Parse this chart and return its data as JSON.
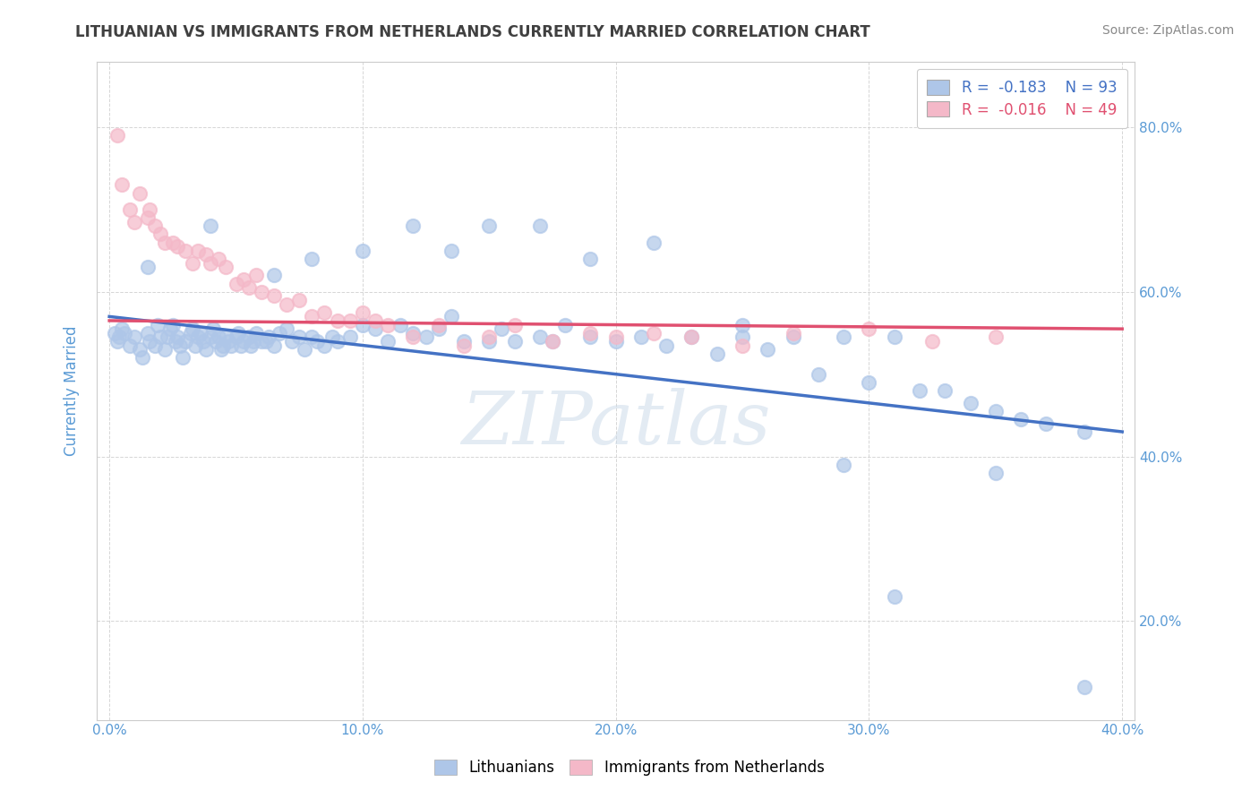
{
  "title": "LITHUANIAN VS IMMIGRANTS FROM NETHERLANDS CURRENTLY MARRIED CORRELATION CHART",
  "source": "Source: ZipAtlas.com",
  "ylabel_label": "Currently Married",
  "x_ticklabels": [
    "0.0%",
    "10.0%",
    "20.0%",
    "30.0%",
    "40.0%"
  ],
  "y_ticklabels": [
    "20.0%",
    "40.0%",
    "60.0%",
    "80.0%"
  ],
  "xlim": [
    -0.005,
    0.405
  ],
  "ylim": [
    0.08,
    0.88
  ],
  "legend_entries": [
    {
      "label": "R =  -0.183    N = 93",
      "color": "#aec6e8"
    },
    {
      "label": "R =  -0.016    N = 49",
      "color": "#f4b8c8"
    }
  ],
  "watermark": "ZIPatlas",
  "title_color": "#404040",
  "axis_label_color": "#5b9bd5",
  "tick_label_color": "#5b9bd5",
  "blue_scatter_color": "#aec6e8",
  "pink_scatter_color": "#f4b8c8",
  "blue_line_color": "#4472c4",
  "pink_line_color": "#e05070",
  "blue_points_x": [
    0.005,
    0.008,
    0.01,
    0.012,
    0.013,
    0.015,
    0.016,
    0.018,
    0.019,
    0.02,
    0.022,
    0.023,
    0.024,
    0.025,
    0.026,
    0.027,
    0.028,
    0.029,
    0.03,
    0.032,
    0.033,
    0.034,
    0.035,
    0.036,
    0.037,
    0.038,
    0.04,
    0.041,
    0.042,
    0.043,
    0.044,
    0.045,
    0.046,
    0.047,
    0.048,
    0.05,
    0.051,
    0.052,
    0.053,
    0.055,
    0.056,
    0.057,
    0.058,
    0.06,
    0.062,
    0.063,
    0.065,
    0.067,
    0.07,
    0.072,
    0.075,
    0.077,
    0.08,
    0.082,
    0.085,
    0.088,
    0.09,
    0.095,
    0.1,
    0.105,
    0.11,
    0.115,
    0.12,
    0.125,
    0.13,
    0.135,
    0.14,
    0.15,
    0.155,
    0.16,
    0.17,
    0.175,
    0.18,
    0.19,
    0.2,
    0.21,
    0.22,
    0.23,
    0.24,
    0.25,
    0.26,
    0.27,
    0.28,
    0.29,
    0.3,
    0.31,
    0.32,
    0.33,
    0.34,
    0.35,
    0.36,
    0.37,
    0.385
  ],
  "blue_points_y": [
    0.555,
    0.535,
    0.545,
    0.53,
    0.52,
    0.55,
    0.54,
    0.535,
    0.56,
    0.545,
    0.53,
    0.545,
    0.555,
    0.56,
    0.54,
    0.545,
    0.535,
    0.52,
    0.54,
    0.55,
    0.555,
    0.535,
    0.545,
    0.55,
    0.54,
    0.53,
    0.545,
    0.555,
    0.54,
    0.545,
    0.53,
    0.535,
    0.545,
    0.54,
    0.535,
    0.545,
    0.55,
    0.535,
    0.54,
    0.545,
    0.535,
    0.54,
    0.55,
    0.54,
    0.54,
    0.545,
    0.535,
    0.55,
    0.555,
    0.54,
    0.545,
    0.53,
    0.545,
    0.54,
    0.535,
    0.545,
    0.54,
    0.545,
    0.56,
    0.555,
    0.54,
    0.56,
    0.55,
    0.545,
    0.555,
    0.57,
    0.54,
    0.54,
    0.555,
    0.54,
    0.545,
    0.54,
    0.56,
    0.545,
    0.54,
    0.545,
    0.535,
    0.545,
    0.525,
    0.545,
    0.53,
    0.545,
    0.5,
    0.545,
    0.49,
    0.545,
    0.48,
    0.48,
    0.465,
    0.455,
    0.445,
    0.44,
    0.43
  ],
  "blue_outliers_x": [
    0.002,
    0.003,
    0.004,
    0.006,
    0.015,
    0.04,
    0.065,
    0.08,
    0.1,
    0.12,
    0.135,
    0.15,
    0.17,
    0.19,
    0.215,
    0.25,
    0.29,
    0.31,
    0.35,
    0.385
  ],
  "blue_outliers_y": [
    0.55,
    0.54,
    0.545,
    0.55,
    0.63,
    0.68,
    0.62,
    0.64,
    0.65,
    0.68,
    0.65,
    0.68,
    0.68,
    0.64,
    0.66,
    0.56,
    0.39,
    0.23,
    0.38,
    0.12
  ],
  "pink_points_x": [
    0.003,
    0.005,
    0.008,
    0.01,
    0.012,
    0.015,
    0.016,
    0.018,
    0.02,
    0.022,
    0.025,
    0.027,
    0.03,
    0.033,
    0.035,
    0.038,
    0.04,
    0.043,
    0.046,
    0.05,
    0.053,
    0.055,
    0.058,
    0.06,
    0.065,
    0.07,
    0.075,
    0.08,
    0.085,
    0.09,
    0.095,
    0.1,
    0.105,
    0.11,
    0.12,
    0.13,
    0.14,
    0.15,
    0.16,
    0.175,
    0.19,
    0.2,
    0.215,
    0.23,
    0.25,
    0.27,
    0.3,
    0.325,
    0.35
  ],
  "pink_points_y": [
    0.79,
    0.73,
    0.7,
    0.685,
    0.72,
    0.69,
    0.7,
    0.68,
    0.67,
    0.66,
    0.66,
    0.655,
    0.65,
    0.635,
    0.65,
    0.645,
    0.635,
    0.64,
    0.63,
    0.61,
    0.615,
    0.605,
    0.62,
    0.6,
    0.595,
    0.585,
    0.59,
    0.57,
    0.575,
    0.565,
    0.565,
    0.575,
    0.565,
    0.56,
    0.545,
    0.56,
    0.535,
    0.545,
    0.56,
    0.54,
    0.55,
    0.545,
    0.55,
    0.545,
    0.535,
    0.55,
    0.555,
    0.54,
    0.545
  ]
}
